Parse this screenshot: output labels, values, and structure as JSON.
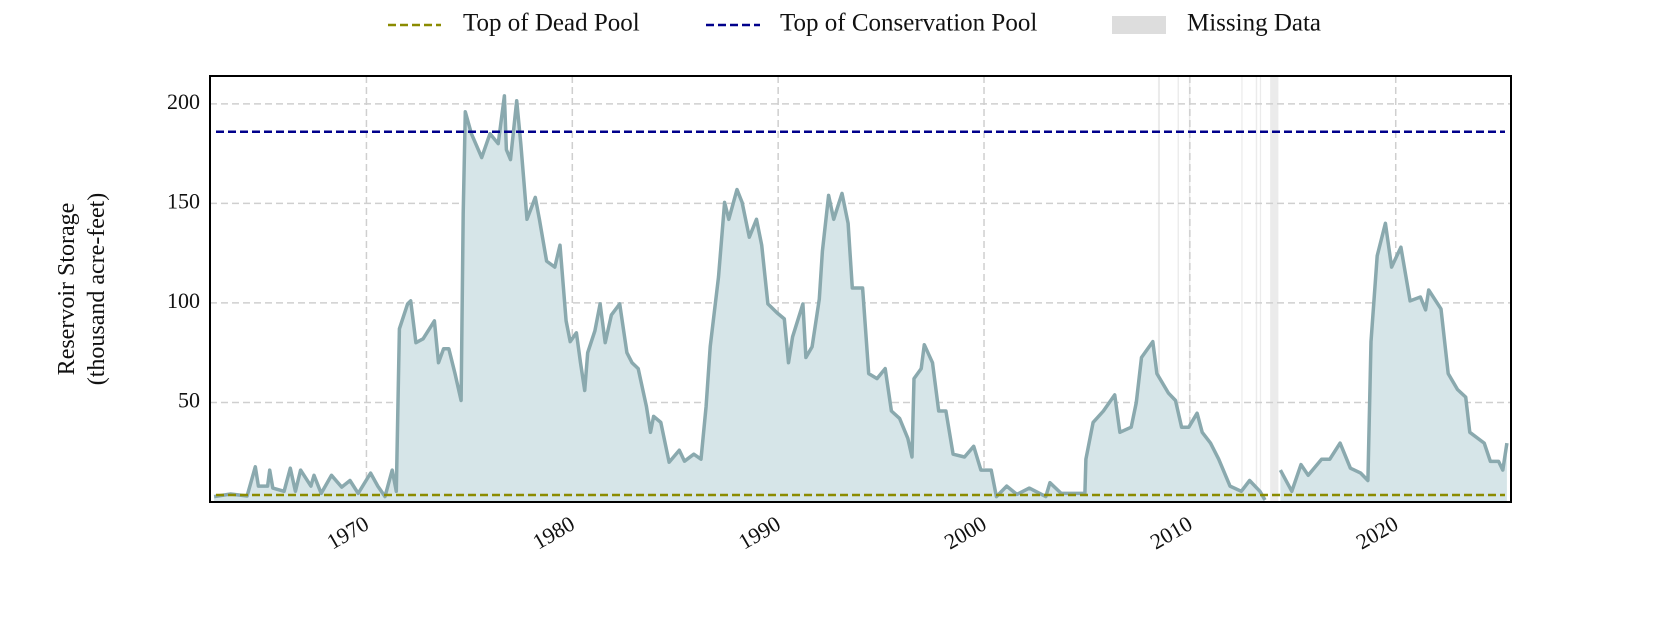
{
  "chart_data": {
    "type": "area",
    "ylabel": [
      "Reservoir Storage",
      "(thousand acre-feet)"
    ],
    "xlim": [
      1962.4,
      2025.6
    ],
    "xticks": [
      1970,
      1980,
      1990,
      2000,
      2010,
      2020
    ],
    "ylim": [
      0,
      214
    ],
    "yticks": [
      50,
      100,
      150,
      200
    ],
    "grid": true,
    "legend": "top",
    "series": [
      {
        "name": "Reservoir Storage",
        "color": "#8aa9ae",
        "fill": "#d6e5e8",
        "x": [
          1962.6,
          1963.4,
          1964.2,
          1964.6,
          1964.75,
          1965.2,
          1965.3,
          1965.45,
          1966.0,
          1966.3,
          1966.55,
          1966.8,
          1967.3,
          1967.45,
          1967.8,
          1968.3,
          1968.8,
          1969.2,
          1969.6,
          1970.2,
          1970.55,
          1970.9,
          1971.25,
          1971.45,
          1971.6,
          1972.0,
          1972.15,
          1972.4,
          1972.75,
          1973.3,
          1973.5,
          1973.75,
          1974.0,
          1974.3,
          1974.6,
          1974.7,
          1974.8,
          1975.1,
          1975.6,
          1976.0,
          1976.4,
          1976.7,
          1976.8,
          1977.0,
          1977.3,
          1977.5,
          1977.8,
          1978.2,
          1978.4,
          1978.75,
          1979.15,
          1979.4,
          1979.7,
          1979.9,
          1980.2,
          1980.4,
          1980.6,
          1980.75,
          1981.1,
          1981.35,
          1981.6,
          1981.9,
          1982.3,
          1982.65,
          1982.9,
          1983.2,
          1983.6,
          1983.8,
          1983.95,
          1984.3,
          1984.7,
          1985.2,
          1985.45,
          1985.9,
          1986.25,
          1986.5,
          1986.7,
          1987.1,
          1987.4,
          1987.6,
          1988.0,
          1988.25,
          1988.6,
          1988.95,
          1989.2,
          1989.5,
          1989.95,
          1990.3,
          1990.5,
          1990.7,
          1991.2,
          1991.35,
          1991.65,
          1992.0,
          1992.15,
          1992.45,
          1992.7,
          1993.1,
          1993.4,
          1993.6,
          1994.1,
          1994.4,
          1994.8,
          1995.2,
          1995.5,
          1995.9,
          1996.3,
          1996.5,
          1996.6,
          1996.95,
          1997.1,
          1997.5,
          1997.8,
          1998.15,
          1998.5,
          1999.05,
          1999.5,
          1999.85,
          2000.35,
          2000.6,
          2001.1,
          2001.6,
          2002.2,
          2003.0,
          2003.2,
          2003.75,
          2004.3,
          2004.9,
          2004.95,
          2005.3,
          2005.8,
          2006.35,
          2006.6,
          2007.15,
          2007.4,
          2007.65,
          2008.2,
          2008.4,
          2008.95,
          2009.3,
          2009.6,
          2009.95,
          2010.35,
          2010.6,
          2011.0,
          2011.4,
          2011.95,
          2012.5,
          2012.9,
          2013.4,
          2013.65,
          2014.0,
          2014.4,
          2014.95,
          2015.4,
          2015.75,
          2016.4,
          2016.8,
          2017.3,
          2017.8,
          2018.3,
          2018.65,
          2018.8,
          2019.1,
          2019.5,
          2019.8,
          2020.25,
          2020.7,
          2021.2,
          2021.45,
          2021.6,
          2022.2,
          2022.55,
          2023.0,
          2023.4,
          2023.6,
          2024.3,
          2024.6,
          2025.0,
          2025.2,
          2025.4
        ],
        "values": [
          2.7,
          4.0,
          3.0,
          17.7,
          8.0,
          8.0,
          16.0,
          7.0,
          5.4,
          17.0,
          5.4,
          16.0,
          8.0,
          13.4,
          4.3,
          13.4,
          7.5,
          10.8,
          4.3,
          14.5,
          8.0,
          2.7,
          16.0,
          5.4,
          87.0,
          99.5,
          101.0,
          80.0,
          82.0,
          91.0,
          70.0,
          77.0,
          77.0,
          64.5,
          51.0,
          145.0,
          196.0,
          185.0,
          173.0,
          185.0,
          180.0,
          204.0,
          177.0,
          172.0,
          201.6,
          180.0,
          142.0,
          153.0,
          142.0,
          121.0,
          118.0,
          129.0,
          91.0,
          80.6,
          85.0,
          70.0,
          56.0,
          75.0,
          86.0,
          99.5,
          80.0,
          94.0,
          99.5,
          75.0,
          70.0,
          67.0,
          48.0,
          35.0,
          43.0,
          40.0,
          20.0,
          26.0,
          20.5,
          24.0,
          21.5,
          48.0,
          78.0,
          113.0,
          150.5,
          142.0,
          157.0,
          150.5,
          133.0,
          142.0,
          129.0,
          99.5,
          95.0,
          92.0,
          70.0,
          83.0,
          99.5,
          72.6,
          78.0,
          102.0,
          126.0,
          154.0,
          142.0,
          155.0,
          140.0,
          107.5,
          107.5,
          64.5,
          62.0,
          67.0,
          45.7,
          42.0,
          32.0,
          22.6,
          62.0,
          67.0,
          79.0,
          70.0,
          45.7,
          45.7,
          24.0,
          22.6,
          28.0,
          16.0,
          16.0,
          2.7,
          8.0,
          3.8,
          7.0,
          2.7,
          9.7,
          4.3,
          4.3,
          4.3,
          21.5,
          40.0,
          45.7,
          53.8,
          35.0,
          37.6,
          50.0,
          72.6,
          80.6,
          64.5,
          54.8,
          51.0,
          37.6,
          37.6,
          44.6,
          35.0,
          29.6,
          21.5,
          8.0,
          5.4,
          10.8,
          5.4,
          1.0,
          null,
          16.0,
          5.4,
          18.8,
          13.4,
          21.5,
          21.5,
          29.6,
          17.0,
          14.5,
          10.8,
          80.6,
          123.7,
          140.0,
          118.0,
          128.0,
          101.0,
          103.0,
          96.5,
          106.5,
          97.0,
          64.5,
          56.5,
          52.7,
          35.0,
          29.6,
          20.4,
          20.4,
          16.0,
          29.6
        ]
      }
    ],
    "reference_lines": [
      {
        "name": "Top of Dead Pool",
        "value": 3.5,
        "color": "#8b8b00"
      },
      {
        "name": "Top of Conservation Pool",
        "value": 186,
        "color": "#00008b"
      }
    ],
    "missing_data": {
      "name": "Missing Data",
      "color": "#dddddd",
      "spans": [
        [
          2008.45,
          2008.55
        ],
        [
          2009.4,
          2009.47
        ],
        [
          2009.95,
          2010.02
        ],
        [
          2012.5,
          2012.56
        ],
        [
          2013.2,
          2013.27
        ],
        [
          2013.4,
          2013.46
        ],
        [
          2013.9,
          2014.3
        ]
      ]
    }
  }
}
